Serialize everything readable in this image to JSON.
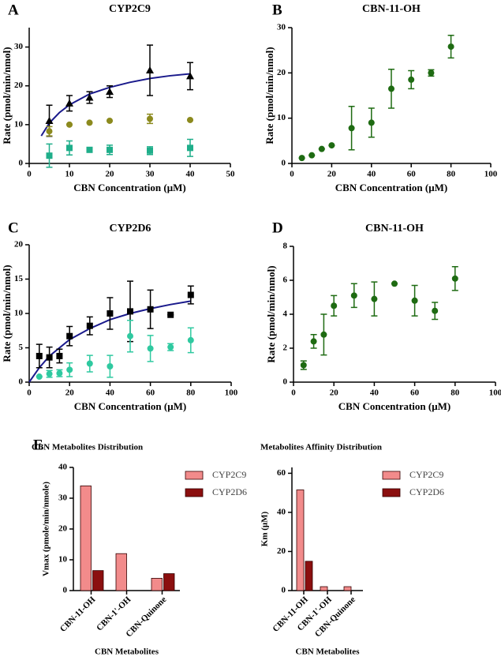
{
  "chart_data": [
    {
      "type": "scatter",
      "label": "A",
      "title": "CYP2C9",
      "xlabel": "CBN Concentration (μM)",
      "ylabel": "Rate (pmol/min/nmol)",
      "xlim": [
        0,
        50
      ],
      "xticks": [
        0,
        10,
        20,
        30,
        40,
        50
      ],
      "ylim": [
        0,
        35
      ],
      "yticks": [
        0,
        10,
        20,
        30
      ],
      "x": [
        5,
        10,
        15,
        20,
        30,
        40
      ],
      "series": [
        {
          "marker": "triangle",
          "color": "#000000",
          "values": [
            11,
            15.5,
            17,
            18.5,
            24,
            22.5
          ],
          "errors": [
            4,
            2,
            1.5,
            1.5,
            6.5,
            3.5
          ]
        },
        {
          "marker": "circle",
          "color": "#8c8a1e",
          "values": [
            8.3,
            10,
            10.5,
            11,
            11.5,
            11.2
          ],
          "errors": [
            1.2,
            0,
            0,
            0,
            1.2,
            0
          ]
        },
        {
          "marker": "square",
          "color": "#1fae8a",
          "values": [
            2,
            4,
            3.5,
            3.5,
            3.3,
            4
          ],
          "errors": [
            3,
            1.8,
            0.5,
            1.2,
            1,
            2.2
          ]
        }
      ],
      "fit": {
        "color": "#1a1a8c",
        "x": [
          3,
          5,
          7.5,
          10,
          15,
          20,
          25,
          30,
          35,
          40
        ],
        "values": [
          7.1,
          10.4,
          13.1,
          15.1,
          17.9,
          19.6,
          20.9,
          21.9,
          22.6,
          23.1
        ]
      }
    },
    {
      "type": "scatter",
      "label": "B",
      "title": "CBN-11-OH",
      "xlabel": "CBN Concentration (μM)",
      "ylabel": "Rate (pmol/min/nmol)",
      "xlim": [
        0,
        100
      ],
      "xticks": [
        0,
        20,
        40,
        60,
        80,
        100
      ],
      "ylim": [
        0,
        30
      ],
      "yticks": [
        0,
        10,
        20,
        30
      ],
      "x": [
        5,
        10,
        15,
        20,
        30,
        40,
        50,
        60,
        70,
        80
      ],
      "series": [
        {
          "marker": "circle",
          "color": "#1e6b12",
          "values": [
            1.2,
            1.8,
            3.2,
            4,
            7.8,
            9,
            16.5,
            18.5,
            20,
            25.8
          ],
          "errors": [
            0,
            0,
            0,
            0,
            4.8,
            3.2,
            4.3,
            2,
            0.7,
            2.5
          ]
        }
      ]
    },
    {
      "type": "scatter",
      "label": "C",
      "title": "CYP2D6",
      "xlabel": "CBN Concentration (μM)",
      "ylabel": "Rate (pmol/min/nmol)",
      "xlim": [
        0,
        100
      ],
      "xticks": [
        0,
        20,
        40,
        60,
        80,
        100
      ],
      "ylim": [
        0,
        20
      ],
      "yticks": [
        0,
        5,
        10,
        15,
        20
      ],
      "x": [
        5,
        10,
        15,
        20,
        30,
        40,
        50,
        60,
        70,
        80
      ],
      "series": [
        {
          "marker": "square",
          "color": "#000000",
          "values": [
            3.8,
            3.6,
            3.8,
            6.7,
            8.2,
            10,
            10.3,
            10.6,
            9.8,
            12.7
          ],
          "errors": [
            1.7,
            1.5,
            1,
            1.4,
            1.3,
            2.3,
            4.4,
            2.8,
            0,
            1.3
          ]
        },
        {
          "marker": "circle",
          "color": "#2fc9a0",
          "values": [
            0.8,
            1.2,
            1.3,
            1.8,
            2.7,
            2.3,
            6.7,
            4.9,
            5.1,
            6.1
          ],
          "errors": [
            0,
            0.5,
            0.5,
            1,
            1.2,
            1.6,
            2.3,
            1.9,
            0.5,
            1.8
          ]
        }
      ],
      "fit": {
        "color": "#1a1a8c",
        "x": [
          0,
          5,
          10,
          20,
          30,
          40,
          50,
          60,
          70,
          80
        ],
        "values": [
          0,
          2.1,
          3.8,
          6.2,
          7.8,
          9.1,
          10,
          10.7,
          11.3,
          11.8
        ]
      }
    },
    {
      "type": "scatter",
      "label": "D",
      "title": "CBN-11-OH",
      "xlabel": "CBN Concentration (μM)",
      "ylabel": "Rate (pmol/min/nmol)",
      "xlim": [
        0,
        100
      ],
      "xticks": [
        0,
        20,
        40,
        60,
        80,
        100
      ],
      "ylim": [
        0,
        8
      ],
      "yticks": [
        0,
        2,
        4,
        6,
        8
      ],
      "x": [
        5,
        10,
        15,
        20,
        30,
        40,
        50,
        60,
        70,
        80
      ],
      "series": [
        {
          "marker": "circle",
          "color": "#1e6b12",
          "values": [
            1,
            2.4,
            2.8,
            4.5,
            5.1,
            4.9,
            5.8,
            4.8,
            4.2,
            6.1
          ],
          "errors": [
            0.25,
            0.4,
            1.2,
            0.6,
            0.7,
            1,
            0,
            0.9,
            0.5,
            0.7
          ]
        }
      ]
    },
    {
      "type": "bar",
      "label": "E",
      "title": "CBN Metabolites Distribution",
      "xlabel": "CBN Metabolites",
      "ylabel": "Vmax (pmole/min/nmole)",
      "ylim": [
        0,
        40
      ],
      "yticks": [
        0,
        10,
        20,
        30,
        40
      ],
      "categories": [
        "CBN-11-OH",
        "CBN-1'-OH",
        "CBN-Quinone"
      ],
      "series": [
        {
          "name": "CYP2C9",
          "color": "#f28b8b",
          "values": [
            34,
            12,
            4
          ]
        },
        {
          "name": "CYP2D6",
          "color": "#8b0f0f",
          "values": [
            6.5,
            null,
            5.5
          ]
        }
      ]
    },
    {
      "type": "bar",
      "title": "Metabolites Affinity Distribution",
      "xlabel": "CBN Metabolites",
      "ylabel": "Km (μM)",
      "ylim": [
        0,
        63
      ],
      "yticks": [
        0,
        20,
        40,
        60
      ],
      "categories": [
        "CBN-11-OH",
        "CBN-1'-OH",
        "CBN-Quinone"
      ],
      "series": [
        {
          "name": "CYP2C9",
          "color": "#f28b8b",
          "values": [
            51.5,
            2,
            2
          ]
        },
        {
          "name": "CYP2D6",
          "color": "#8b0f0f",
          "values": [
            15,
            null,
            null
          ]
        }
      ]
    }
  ]
}
